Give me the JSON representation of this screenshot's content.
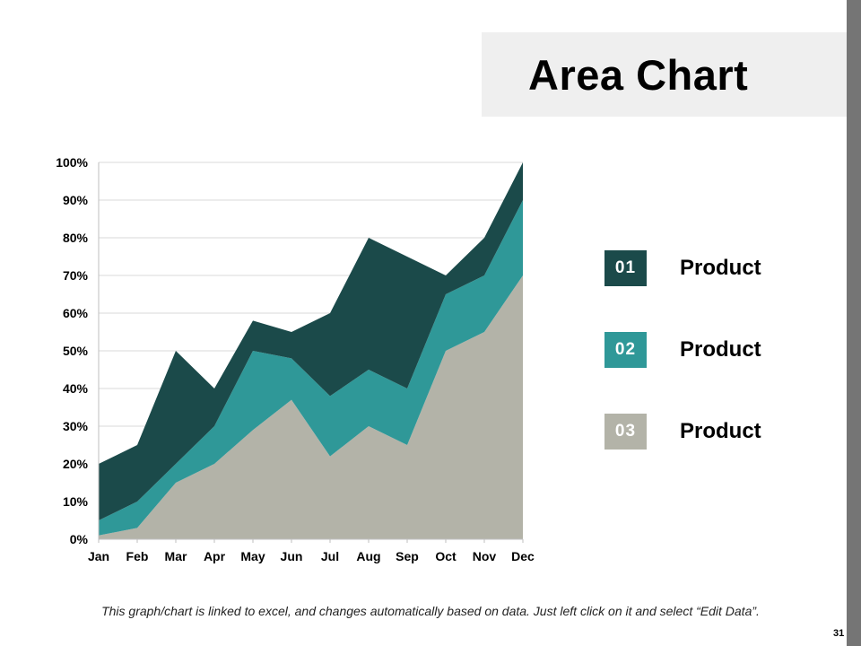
{
  "header": {
    "title": "Area Chart"
  },
  "legend": [
    {
      "number": "01",
      "label": "Product",
      "color": "#1b4a4a"
    },
    {
      "number": "02",
      "label": "Product",
      "color": "#2f9898"
    },
    {
      "number": "03",
      "label": "Product",
      "color": "#b3b3a8"
    }
  ],
  "footer": {
    "note": "This graph/chart is linked to excel, and changes automatically based on data. Just left click on it and select “Edit Data”.",
    "page_number": "31"
  },
  "chart_data": {
    "type": "area",
    "stacked": true,
    "categories": [
      "Jan",
      "Feb",
      "Mar",
      "Apr",
      "May",
      "Jun",
      "Jul",
      "Aug",
      "Sep",
      "Oct",
      "Nov",
      "Dec"
    ],
    "ylim": [
      0,
      100
    ],
    "yticks": [
      0,
      10,
      20,
      30,
      40,
      50,
      60,
      70,
      80,
      90,
      100
    ],
    "ytick_labels": [
      "0%",
      "10%",
      "20%",
      "30%",
      "40%",
      "50%",
      "60%",
      "70%",
      "80%",
      "90%",
      "100%"
    ],
    "series": [
      {
        "name": "Product 03",
        "color": "#b3b3a8",
        "values": [
          1,
          3,
          15,
          20,
          29,
          37,
          22,
          30,
          25,
          50,
          55,
          70
        ]
      },
      {
        "name": "Product 02",
        "color": "#2f9898",
        "values": [
          4,
          7,
          5,
          10,
          21,
          11,
          16,
          15,
          15,
          15,
          15,
          20
        ]
      },
      {
        "name": "Product 01",
        "color": "#1b4a4a",
        "values": [
          15,
          15,
          30,
          10,
          8,
          7,
          22,
          35,
          35,
          5,
          10,
          10
        ]
      }
    ],
    "grid": true
  }
}
